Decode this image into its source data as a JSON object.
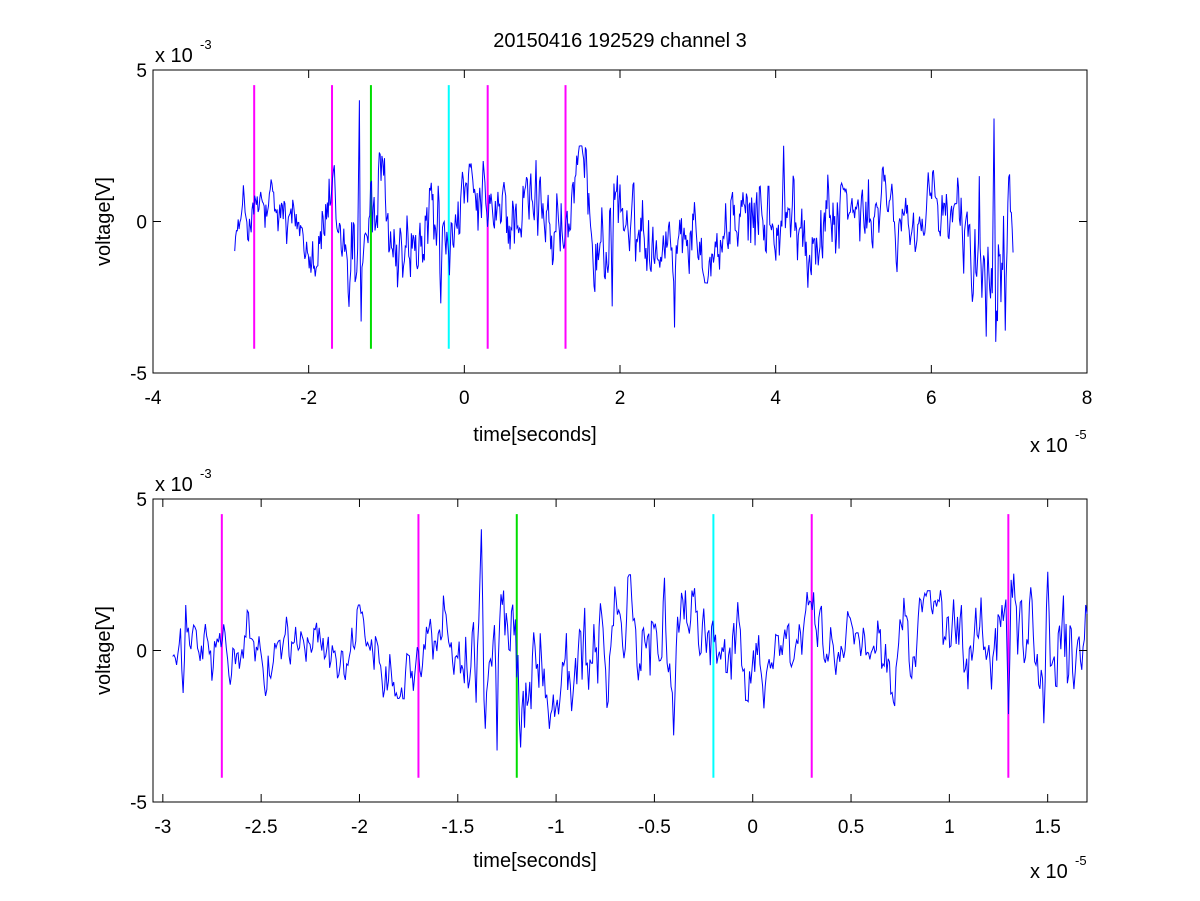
{
  "title": "20150416 192529 channel 3",
  "colors": {
    "signal": "#0000ff",
    "magenta": "#ff00ff",
    "green": "#00dd00",
    "cyan": "#00ffff",
    "axes": "#000000",
    "background": "#ffffff"
  },
  "chart_data": [
    {
      "type": "line",
      "panel": "top",
      "xlabel": "time[seconds]",
      "ylabel": "voltage[V]",
      "xlim": [
        -4,
        8
      ],
      "ylim": [
        -5,
        5
      ],
      "x_ticks": [
        -4,
        -2,
        0,
        2,
        4,
        6,
        8
      ],
      "y_ticks": [
        -5,
        0,
        5
      ],
      "x_exponent": {
        "base": "x 10",
        "power": "-5"
      },
      "y_exponent": {
        "base": "x 10",
        "power": "-3"
      },
      "grid": false,
      "series": [
        {
          "color": "#0000ff",
          "x_range": [
            -2.95,
            7.05
          ],
          "sample_count": 900,
          "envelope": [
            [
              -2.95,
              1.2
            ],
            [
              -2.5,
              1.3
            ],
            [
              -2.0,
              1.3
            ],
            [
              -1.5,
              2.2
            ],
            [
              -1.3,
              2.8
            ],
            [
              -1.0,
              2.2
            ],
            [
              -0.5,
              1.8
            ],
            [
              0.0,
              1.5
            ],
            [
              0.5,
              1.7
            ],
            [
              1.0,
              1.8
            ],
            [
              1.5,
              2.0
            ],
            [
              2.0,
              1.6
            ],
            [
              2.5,
              1.5
            ],
            [
              3.0,
              1.6
            ],
            [
              3.5,
              1.7
            ],
            [
              4.0,
              1.9
            ],
            [
              4.5,
              1.8
            ],
            [
              5.0,
              1.6
            ],
            [
              5.5,
              1.4
            ],
            [
              6.0,
              1.3
            ],
            [
              6.5,
              2.3
            ],
            [
              6.8,
              3.2
            ],
            [
              7.05,
              3.0
            ]
          ],
          "peaks": [
            [
              -1.35,
              4.0
            ],
            [
              -1.33,
              -3.3
            ],
            [
              -0.3,
              -2.7
            ],
            [
              1.9,
              -2.8
            ],
            [
              2.7,
              -3.5
            ],
            [
              4.1,
              2.5
            ],
            [
              6.7,
              -3.8
            ],
            [
              6.8,
              3.4
            ],
            [
              6.95,
              -3.6
            ]
          ]
        }
      ],
      "markers": [
        {
          "x": -2.7,
          "color": "#ff00ff",
          "ymin": -4.2,
          "ymax": 4.5
        },
        {
          "x": -1.7,
          "color": "#ff00ff",
          "ymin": -4.2,
          "ymax": 4.5
        },
        {
          "x": -1.2,
          "color": "#00dd00",
          "ymin": -4.2,
          "ymax": 4.5
        },
        {
          "x": -0.2,
          "color": "#00ffff",
          "ymin": -4.2,
          "ymax": 4.5
        },
        {
          "x": 0.3,
          "color": "#ff00ff",
          "ymin": -4.2,
          "ymax": 4.5
        },
        {
          "x": 1.3,
          "color": "#ff00ff",
          "ymin": -4.2,
          "ymax": 4.5
        }
      ]
    },
    {
      "type": "line",
      "panel": "bottom",
      "xlabel": "time[seconds]",
      "ylabel": "voltage[V]",
      "xlim": [
        -3.05,
        1.7
      ],
      "ylim": [
        -5,
        5
      ],
      "x_ticks": [
        -3,
        -2.5,
        -2,
        -1.5,
        -1,
        -0.5,
        0,
        0.5,
        1,
        1.5
      ],
      "y_ticks": [
        -5,
        0,
        5
      ],
      "x_exponent": {
        "base": "x 10",
        "power": "-5"
      },
      "y_exponent": {
        "base": "x 10",
        "power": "-3"
      },
      "grid": false,
      "series": [
        {
          "color": "#0000ff",
          "x_range": [
            -2.95,
            1.7
          ],
          "sample_count": 700,
          "envelope": [
            [
              -2.95,
              1.2
            ],
            [
              -2.5,
              1.2
            ],
            [
              -2.0,
              1.2
            ],
            [
              -1.7,
              1.3
            ],
            [
              -1.5,
              1.8
            ],
            [
              -1.35,
              3.0
            ],
            [
              -1.2,
              2.4
            ],
            [
              -1.0,
              2.0
            ],
            [
              -0.5,
              2.0
            ],
            [
              0.0,
              1.6
            ],
            [
              0.5,
              1.5
            ],
            [
              1.0,
              1.6
            ],
            [
              1.3,
              2.0
            ],
            [
              1.5,
              2.2
            ],
            [
              1.7,
              1.8
            ]
          ],
          "peaks": [
            [
              -2.9,
              -1.4
            ],
            [
              -1.38,
              4.0
            ],
            [
              -1.3,
              -3.3
            ],
            [
              -1.18,
              -3.2
            ],
            [
              -0.92,
              -2.0
            ],
            [
              -0.45,
              2.4
            ],
            [
              -0.4,
              -2.8
            ],
            [
              1.3,
              -2.1
            ],
            [
              1.48,
              -2.4
            ],
            [
              1.5,
              2.6
            ]
          ]
        }
      ],
      "markers": [
        {
          "x": -2.7,
          "color": "#ff00ff",
          "ymin": -4.2,
          "ymax": 4.5
        },
        {
          "x": -1.7,
          "color": "#ff00ff",
          "ymin": -4.2,
          "ymax": 4.5
        },
        {
          "x": -1.2,
          "color": "#00dd00",
          "ymin": -4.2,
          "ymax": 4.5
        },
        {
          "x": -0.2,
          "color": "#00ffff",
          "ymin": -4.2,
          "ymax": 4.5
        },
        {
          "x": 0.3,
          "color": "#ff00ff",
          "ymin": -4.2,
          "ymax": 4.5
        },
        {
          "x": 1.3,
          "color": "#ff00ff",
          "ymin": -4.2,
          "ymax": 4.5
        }
      ]
    }
  ]
}
